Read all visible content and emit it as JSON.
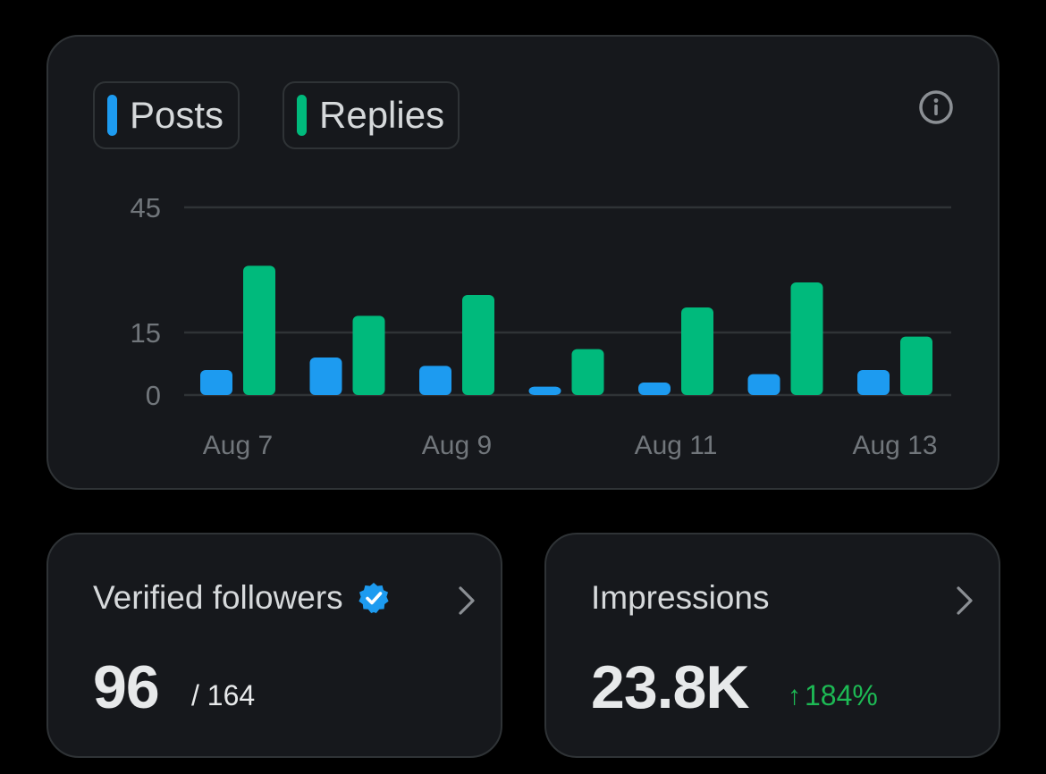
{
  "legend": {
    "posts_label": "Posts",
    "replies_label": "Replies"
  },
  "colors": {
    "posts": "#1d9bf0",
    "replies": "#00ba7c",
    "change_positive": "#1db954"
  },
  "icons": {
    "info": "info-icon",
    "verified": "verified-badge-icon",
    "chevron": "chevron-right-icon",
    "up_arrow": "arrow-up-icon"
  },
  "chart_data": {
    "type": "bar",
    "categories": [
      "Aug 7",
      "Aug 8",
      "Aug 9",
      "Aug 10",
      "Aug 11",
      "Aug 12",
      "Aug 13"
    ],
    "series": [
      {
        "name": "Posts",
        "values": [
          6,
          9,
          7,
          2,
          3,
          5,
          6
        ]
      },
      {
        "name": "Replies",
        "values": [
          31,
          19,
          24,
          11,
          21,
          27,
          14
        ]
      }
    ],
    "y_ticks": [
      "0",
      "15",
      "45"
    ],
    "x_tick_labels": [
      "Aug 7",
      "Aug 9",
      "Aug 11",
      "Aug 13"
    ],
    "ylim": [
      0,
      45
    ],
    "xlabel": "",
    "ylabel": "",
    "title": ""
  },
  "followers": {
    "title": "Verified followers",
    "value": "96",
    "total": "/ 164"
  },
  "impressions": {
    "title": "Impressions",
    "value": "23.8K",
    "arrow": "↑",
    "change": "184%"
  }
}
